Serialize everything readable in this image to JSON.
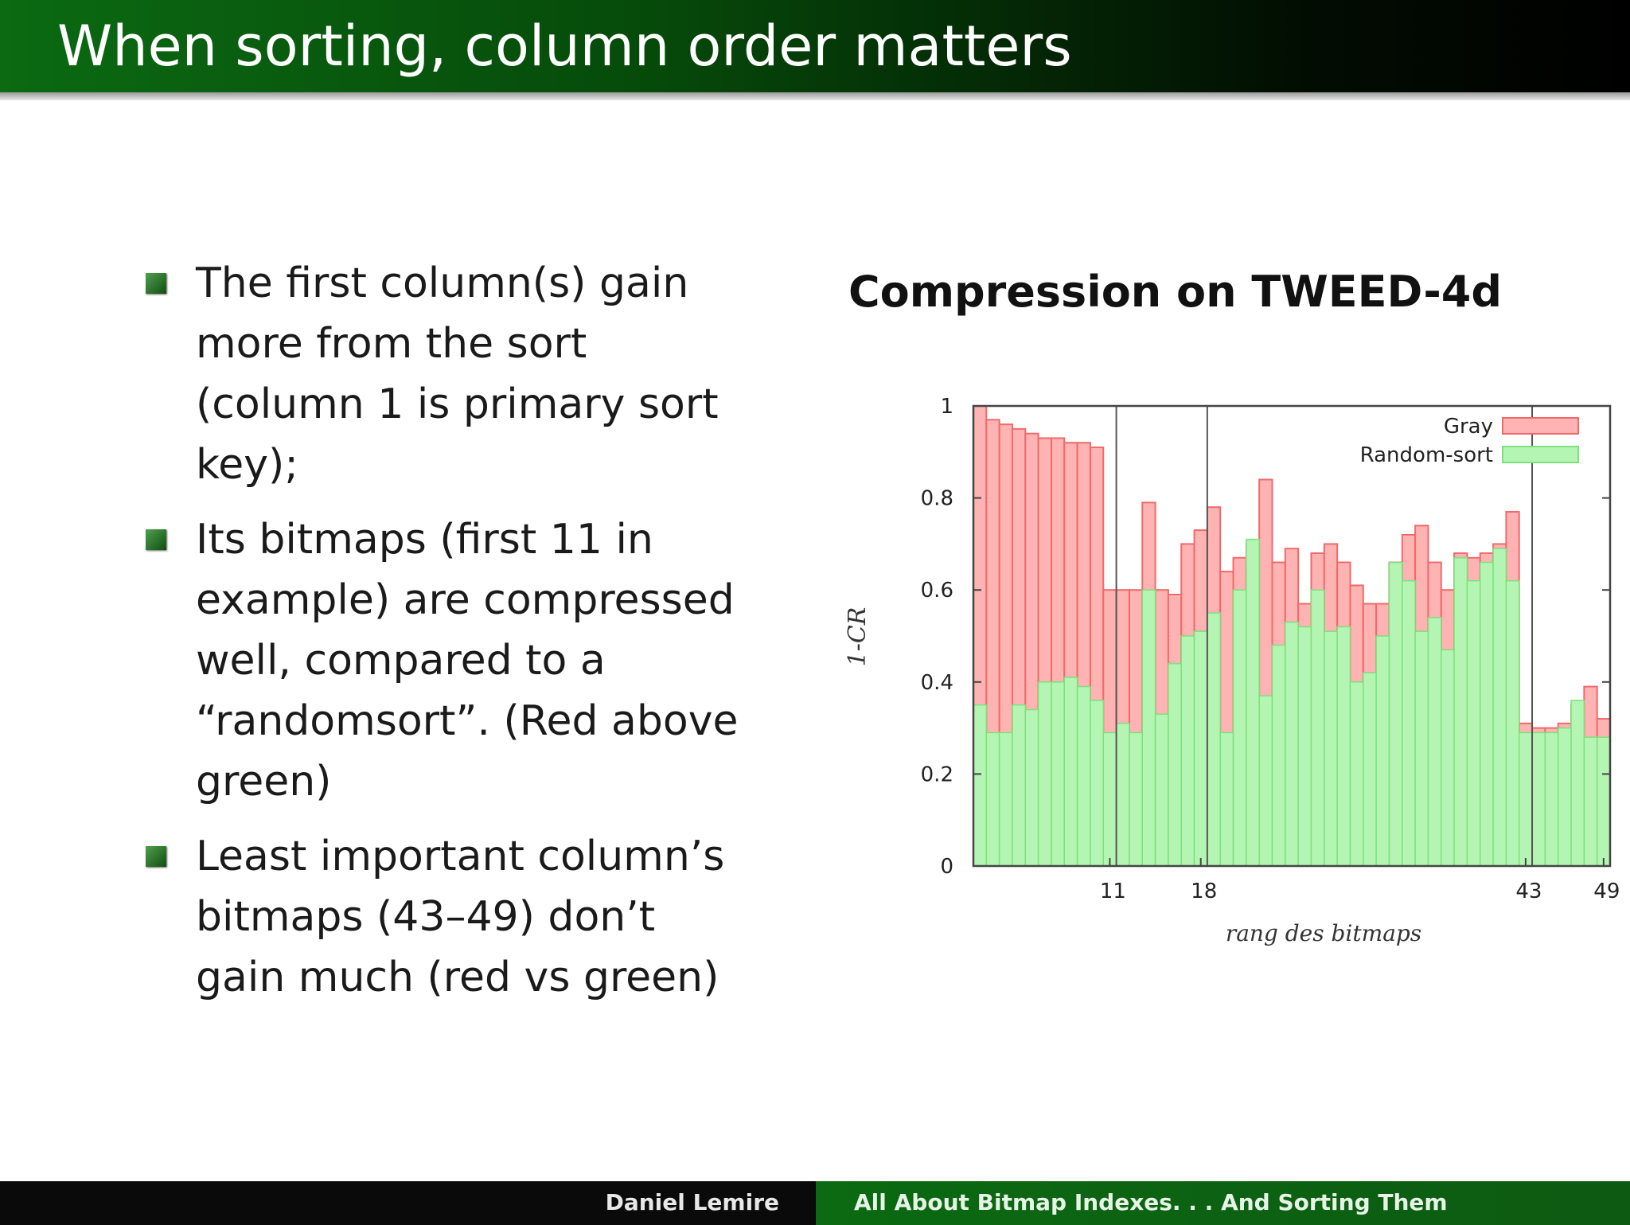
{
  "slide": {
    "title": "When sorting, column order matters",
    "bullets": [
      "The first column(s) gain more from the sort (column 1 is primary sort key);",
      "Its bitmaps (first 11 in example) are compressed well, compared to a “randomsort”. (Red above green)",
      "Least important column’s bitmaps (43–49) don’t gain much (red vs green)"
    ]
  },
  "footer": {
    "author": "Daniel Lemire",
    "talk_title": "All About Bitmap Indexes. . . And Sorting Them"
  },
  "chart_data": {
    "type": "bar",
    "title": "Compression on TWEED-4d",
    "xlabel": "rang des bitmaps",
    "ylabel": "1-CR",
    "ylim": [
      0,
      1
    ],
    "yticks": [
      "0",
      "0.2",
      "0.4",
      "0.6",
      "0.8",
      "1"
    ],
    "xticks": [
      "11",
      "18",
      "43",
      "49"
    ],
    "legend_position": "top-right",
    "grid": "vertical lines at 11, 18, 43",
    "colors": {
      "Gray": "#ffb3b3",
      "Gray_edge": "#f06a6a",
      "Random-sort": "#b4f5b4",
      "Random-sort_edge": "#7ee07e"
    },
    "categories": [
      1,
      2,
      3,
      4,
      5,
      6,
      7,
      8,
      9,
      10,
      11,
      12,
      13,
      14,
      15,
      16,
      17,
      18,
      19,
      20,
      21,
      22,
      23,
      24,
      25,
      26,
      27,
      28,
      29,
      30,
      31,
      32,
      33,
      34,
      35,
      36,
      37,
      38,
      39,
      40,
      41,
      42,
      43,
      44,
      45,
      46,
      47,
      48,
      49
    ],
    "series": [
      {
        "name": "Gray",
        "values": [
          1.0,
          0.97,
          0.96,
          0.95,
          0.94,
          0.93,
          0.93,
          0.92,
          0.92,
          0.91,
          0.6,
          0.6,
          0.6,
          0.79,
          0.6,
          0.59,
          0.7,
          0.73,
          0.78,
          0.64,
          0.67,
          0.7,
          0.84,
          0.66,
          0.69,
          0.57,
          0.68,
          0.7,
          0.66,
          0.61,
          0.57,
          0.57,
          0.66,
          0.72,
          0.74,
          0.66,
          0.6,
          0.68,
          0.67,
          0.68,
          0.7,
          0.77,
          0.31,
          0.3,
          0.3,
          0.31,
          0.35,
          0.39,
          0.32
        ]
      },
      {
        "name": "Random-sort",
        "values": [
          0.35,
          0.29,
          0.29,
          0.35,
          0.34,
          0.4,
          0.4,
          0.41,
          0.39,
          0.36,
          0.29,
          0.31,
          0.29,
          0.6,
          0.33,
          0.44,
          0.5,
          0.51,
          0.55,
          0.29,
          0.6,
          0.71,
          0.37,
          0.48,
          0.53,
          0.52,
          0.6,
          0.51,
          0.52,
          0.4,
          0.42,
          0.5,
          0.66,
          0.62,
          0.51,
          0.54,
          0.47,
          0.67,
          0.62,
          0.66,
          0.69,
          0.62,
          0.29,
          0.29,
          0.29,
          0.3,
          0.36,
          0.28,
          0.28
        ]
      }
    ]
  }
}
